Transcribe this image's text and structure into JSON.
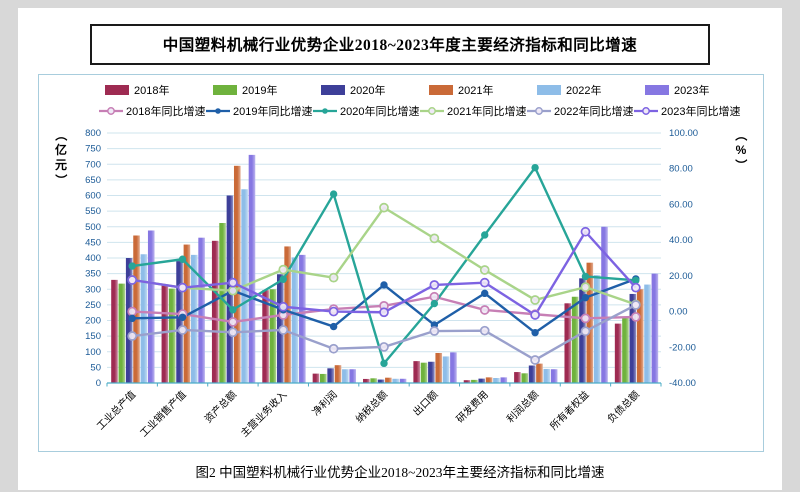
{
  "page": {
    "title": "中国塑料机械行业优势企业2018~2023年度主要经济指标和同比增速",
    "caption": "图2  中国塑料机械行业优势企业2018~2023年主要经济指标和同比增速"
  },
  "chart_data": {
    "type": "bar",
    "subtype": "grouped-bar-with-lines-dual-axis",
    "title": "中国塑料机械行业优势企业2018~2023年度主要经济指标和同比增速",
    "categories": [
      "工业总产值",
      "工业销售产值",
      "资产总额",
      "主营业务收入",
      "净利润",
      "纳税总额",
      "出口额",
      "研发费用",
      "利润总额",
      "所有者权益",
      "负债总额"
    ],
    "left_axis": {
      "label": "（亿元）",
      "min": 0,
      "max": 800,
      "step": 50,
      "ticks": [
        "800",
        "750",
        "700",
        "650",
        "600",
        "550",
        "500",
        "450",
        "400",
        "350",
        "300",
        "250",
        "200",
        "150",
        "100",
        "50",
        "0"
      ]
    },
    "right_axis": {
      "label": "（%）",
      "min": -40,
      "max": 100,
      "step": 20,
      "ticks": [
        "100.00",
        "80.00",
        "60.00",
        "40.00",
        "20.00",
        "0.00",
        "-20.00",
        "-40.00"
      ]
    },
    "grid": true,
    "legend_position": "top",
    "bar_series": [
      {
        "name": "2018年",
        "color": "#9e2b52",
        "values": [
          330,
          312,
          455,
          297,
          30,
          13,
          70,
          9,
          35,
          255,
          190
        ]
      },
      {
        "name": "2019年",
        "color": "#6fb23d",
        "values": [
          318,
          302,
          512,
          300,
          29,
          15,
          65,
          10,
          31,
          276,
          212
        ]
      },
      {
        "name": "2020年",
        "color": "#3d3f99",
        "values": [
          400,
          390,
          600,
          348,
          47,
          11,
          68,
          14,
          56,
          335,
          285
        ]
      },
      {
        "name": "2021年",
        "color": "#ca6a38",
        "values": [
          472,
          443,
          695,
          437,
          57,
          17,
          96,
          18,
          62,
          385,
          300
        ]
      },
      {
        "name": "2022年",
        "color": "#8ebde8",
        "values": [
          412,
          410,
          620,
          402,
          44,
          13.5,
          85,
          16,
          45,
          345,
          315
        ]
      },
      {
        "name": "2023年",
        "color": "#8677e2",
        "values": [
          488,
          465,
          730,
          410,
          44,
          13.5,
          98,
          18,
          44,
          500,
          350
        ]
      }
    ],
    "line_series": [
      {
        "name": "2018年同比增速",
        "color": "#c77fb5",
        "marker": "open",
        "values": [
          0,
          -1.4,
          -5.8,
          -1.9,
          1.4,
          3.2,
          8.3,
          0.9,
          -1.5,
          -3.8,
          -3.0
        ]
      },
      {
        "name": "2019年同比增速",
        "color": "#1f5fa8",
        "marker": "dot",
        "values": [
          -3.8,
          -3.2,
          11.7,
          1.0,
          -8.4,
          14.9,
          -7.5,
          10.2,
          -11.8,
          7.8,
          18.3
        ]
      },
      {
        "name": "2020年同比增速",
        "color": "#27a598",
        "marker": "dot",
        "values": [
          25.5,
          29.3,
          1.0,
          18.1,
          65.8,
          -29.0,
          4.5,
          42.9,
          80.6,
          19.7,
          17.5
        ]
      },
      {
        "name": "2021年同比增速",
        "color": "#a9d489",
        "marker": "open",
        "values": [
          17.7,
          13.4,
          11.7,
          23.5,
          19.0,
          58.2,
          41.0,
          23.3,
          6.5,
          13.7,
          4.0
        ]
      },
      {
        "name": "2022年同比增速",
        "color": "#9aa0cc",
        "marker": "open",
        "values": [
          -13.7,
          -10.3,
          -11.6,
          -10.3,
          -20.8,
          -19.8,
          -10.9,
          -10.7,
          -27.1,
          -11.0,
          3.7
        ]
      },
      {
        "name": "2023年同比增速",
        "color": "#7d63e2",
        "marker": "open",
        "values": [
          17.7,
          13.4,
          16.2,
          2.7,
          0.0,
          -0.4,
          14.9,
          16.2,
          -1.9,
          44.7,
          13.4
        ]
      }
    ]
  }
}
